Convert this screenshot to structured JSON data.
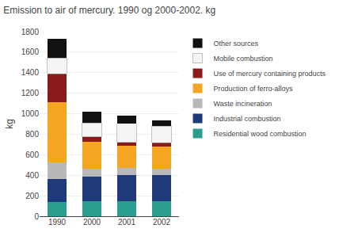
{
  "chart_data": {
    "type": "bar",
    "stacked": true,
    "title": "Emission to air of mercury. 1990 og 2000-2002. kg",
    "ylabel": "kg",
    "categories": [
      "1990",
      "2000",
      "2001",
      "2002"
    ],
    "series": [
      {
        "name": "Residential wood combustion",
        "color": "#2a9d8f",
        "values": [
          140,
          150,
          145,
          145
        ]
      },
      {
        "name": "Industrial combustion",
        "color": "#1e3a7a",
        "values": [
          220,
          235,
          260,
          260
        ]
      },
      {
        "name": "Waste incineration",
        "color": "#b8b8b8",
        "values": [
          165,
          75,
          65,
          55
        ]
      },
      {
        "name": "Production of ferro-alloys",
        "color": "#f4a522",
        "values": [
          590,
          265,
          215,
          220
        ]
      },
      {
        "name": "Use of mercury containing products",
        "color": "#8b1a1a",
        "values": [
          275,
          50,
          35,
          35
        ]
      },
      {
        "name": "Mobile combustion",
        "color": "#f5f5f5",
        "values": [
          155,
          135,
          185,
          165
        ]
      },
      {
        "name": "Other sources",
        "color": "#111111",
        "values": [
          185,
          110,
          80,
          55
        ]
      }
    ],
    "ylim": [
      0,
      1800
    ],
    "yticks": [
      0,
      200,
      400,
      600,
      800,
      1000,
      1200,
      1400,
      1600,
      1800
    ],
    "grid": true,
    "legend": "right"
  }
}
